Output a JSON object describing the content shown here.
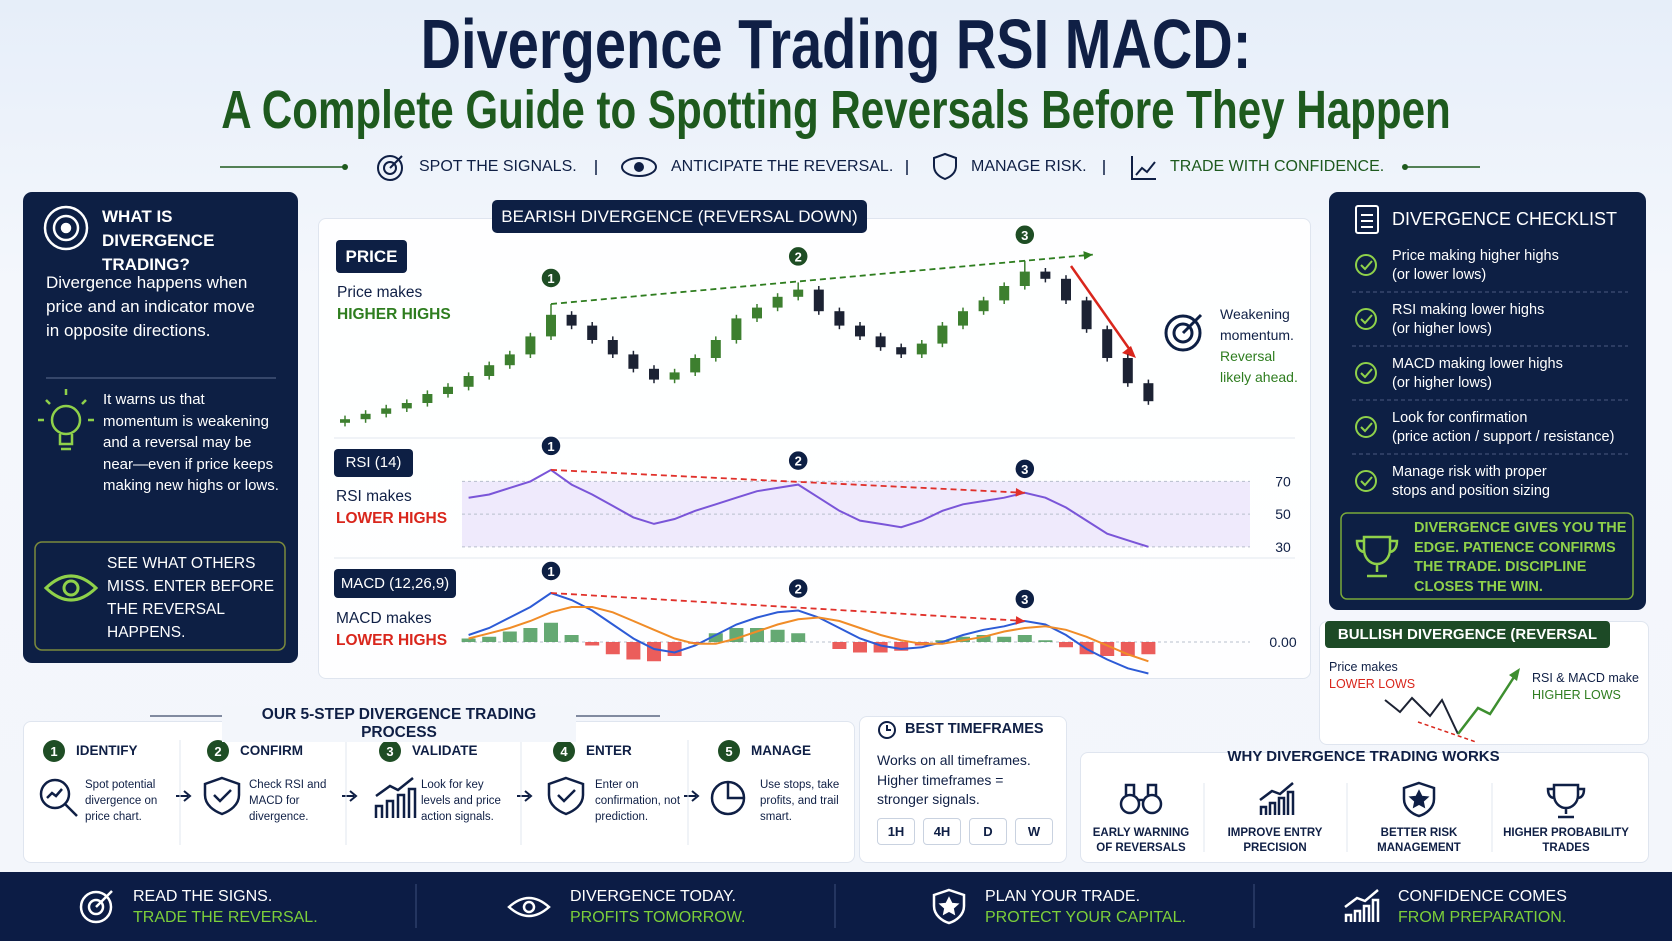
{
  "header": {
    "title": "Divergence Trading RSI MACD:",
    "subtitle": "A Complete Guide to Spotting Reversals Before They Happen",
    "taglines": [
      "SPOT THE SIGNALS.",
      "ANTICIPATE THE REVERSAL.",
      "MANAGE RISK.",
      "TRADE WITH CONFIDENCE."
    ]
  },
  "what_is": {
    "heading": "WHAT IS DIVERGENCE TRADING?",
    "body": "Divergence happens when price and an indicator move in opposite directions.",
    "tip": "It warns us that momentum is weakening and a reversal may be near—even if price keeps making new highs or lows.",
    "callout": "SEE WHAT OTHERS MISS. ENTER BEFORE THE REVERSAL HAPPENS."
  },
  "bearish_panel": {
    "title": "BEARISH DIVERGENCE (REVERSAL DOWN)",
    "peak_labels": [
      "1",
      "2",
      "3"
    ]
  },
  "chart_data": [
    {
      "type": "candlestick",
      "label": "PRICE",
      "note": "Price makes",
      "highlight": "HIGHER HIGHS",
      "side_note": "Weakening momentum.",
      "side_highlight": "Reversal likely ahead.",
      "open": [
        4,
        6,
        9,
        12,
        15,
        20,
        24,
        30,
        36,
        42,
        52,
        64,
        58,
        50,
        42,
        34,
        28,
        32,
        40,
        50,
        62,
        68,
        74,
        78,
        66,
        58,
        52,
        46,
        42,
        48,
        58,
        66,
        72,
        80,
        88,
        84,
        72,
        56,
        40,
        26
      ],
      "high": [
        8,
        11,
        14,
        17,
        22,
        26,
        32,
        38,
        44,
        54,
        70,
        66,
        60,
        52,
        44,
        36,
        34,
        42,
        52,
        64,
        70,
        76,
        82,
        80,
        68,
        60,
        54,
        48,
        50,
        60,
        68,
        74,
        82,
        94,
        90,
        86,
        74,
        58,
        42,
        28
      ],
      "low": [
        2,
        4,
        7,
        10,
        13,
        18,
        22,
        28,
        34,
        40,
        50,
        56,
        48,
        40,
        32,
        26,
        26,
        30,
        38,
        48,
        60,
        66,
        72,
        64,
        56,
        50,
        44,
        40,
        40,
        46,
        56,
        64,
        70,
        78,
        82,
        70,
        54,
        38,
        24,
        14
      ],
      "close": [
        6,
        9,
        12,
        15,
        20,
        24,
        30,
        36,
        42,
        52,
        64,
        58,
        50,
        42,
        34,
        28,
        32,
        40,
        50,
        62,
        68,
        74,
        78,
        66,
        58,
        52,
        46,
        42,
        48,
        58,
        66,
        72,
        80,
        88,
        84,
        72,
        56,
        40,
        26,
        16
      ],
      "up_color": "#3d7f2f",
      "down_color": "#1c2233",
      "ylim": [
        0,
        100
      ]
    },
    {
      "type": "line",
      "label": "RSI (14)",
      "note": "RSI makes",
      "highlight": "LOWER HIGHS",
      "values": [
        null,
        null,
        null,
        null,
        null,
        null,
        60,
        62,
        66,
        70,
        77,
        68,
        62,
        55,
        48,
        44,
        47,
        52,
        56,
        60,
        64,
        66,
        68,
        60,
        52,
        46,
        44,
        42,
        46,
        52,
        56,
        58,
        60,
        63,
        60,
        54,
        46,
        38,
        34,
        30
      ],
      "color": "#7a55d8",
      "ylim": [
        25,
        80
      ],
      "yticks": [
        70,
        50,
        30
      ]
    },
    {
      "type": "macd",
      "label": "MACD (12,26,9)",
      "note": "MACD makes",
      "highlight": "LOWER HIGHS",
      "series": [
        {
          "color": "#2d5bd6",
          "values": [
            null,
            null,
            null,
            null,
            null,
            null,
            0.2,
            0.4,
            0.7,
            1.0,
            1.4,
            1.2,
            0.9,
            0.5,
            0.1,
            -0.2,
            -0.3,
            -0.1,
            0.2,
            0.5,
            0.7,
            0.85,
            0.9,
            0.7,
            0.4,
            0.1,
            -0.1,
            -0.2,
            -0.15,
            0,
            0.2,
            0.35,
            0.45,
            0.6,
            0.5,
            0.2,
            -0.2,
            -0.5,
            -0.75,
            -0.9
          ]
        },
        {
          "color": "#f08c28",
          "values": [
            null,
            null,
            null,
            null,
            null,
            null,
            0.1,
            0.25,
            0.4,
            0.6,
            0.85,
            1.0,
            1.0,
            0.85,
            0.6,
            0.35,
            0.1,
            -0.05,
            -0.05,
            0.1,
            0.3,
            0.5,
            0.65,
            0.7,
            0.6,
            0.4,
            0.2,
            0.05,
            -0.05,
            -0.05,
            0.05,
            0.15,
            0.3,
            0.4,
            0.45,
            0.35,
            0.15,
            -0.1,
            -0.35,
            -0.55
          ]
        }
      ],
      "histogram": [
        null,
        null,
        null,
        null,
        null,
        null,
        0.1,
        0.15,
        0.3,
        0.4,
        0.55,
        0.2,
        -0.1,
        -0.35,
        -0.5,
        -0.55,
        -0.4,
        -0.05,
        0.25,
        0.4,
        0.4,
        0.35,
        0.25,
        0,
        -0.2,
        -0.3,
        -0.3,
        -0.25,
        -0.1,
        0.05,
        0.15,
        0.2,
        0.15,
        0.2,
        0.05,
        -0.15,
        -0.35,
        -0.4,
        -0.4,
        -0.35
      ],
      "up_color": "#4a9a5a",
      "down_color": "#e8413e",
      "ylim": [
        -1.6,
        1.6
      ],
      "yticks": [
        {
          "value": 0,
          "label": "0.00"
        }
      ]
    }
  ],
  "checklist": {
    "title": "DIVERGENCE CHECKLIST",
    "items": [
      {
        "text": "Price making higher highs",
        "note": "(or lower lows)"
      },
      {
        "text": "RSI making lower highs",
        "note": "(or higher lows)"
      },
      {
        "text": "MACD making lower highs",
        "note": "(or higher lows)"
      },
      {
        "text": "Look for confirmation",
        "note": "(price action / support / resistance)"
      },
      {
        "text": "Manage risk with proper",
        "note": "stops and position sizing"
      }
    ],
    "quote": "DIVERGENCE GIVES YOU THE EDGE. PATIENCE CONFIRMS THE TRADE. DISCIPLINE CLOSES THE WIN."
  },
  "bullish_panel": {
    "title": "BULLISH DIVERGENCE (REVERSAL UP)",
    "left_note": "Price makes",
    "left_highlight": "LOWER LOWS",
    "right_note": "RSI & MACD make",
    "right_highlight": "HIGHER LOWS"
  },
  "process": {
    "title": "OUR 5-STEP DIVERGENCE TRADING PROCESS",
    "steps": [
      {
        "number": "1",
        "title": "IDENTIFY",
        "text": "Spot potential divergence on price chart."
      },
      {
        "number": "2",
        "title": "CONFIRM",
        "text": "Check RSI and MACD for divergence."
      },
      {
        "number": "3",
        "title": "VALIDATE",
        "text": "Look for key levels and price action signals."
      },
      {
        "number": "4",
        "title": "ENTER",
        "text": "Enter on confirmation, not prediction."
      },
      {
        "number": "5",
        "title": "MANAGE",
        "text": "Use stops, take profits, and trail smart."
      }
    ]
  },
  "timeframes": {
    "title": "BEST TIMEFRAMES",
    "text": "Works on all timeframes.",
    "note": "Higher timeframes = stronger signals.",
    "chips": [
      "1H",
      "4H",
      "D",
      "W"
    ]
  },
  "why": {
    "title": "WHY DIVERGENCE TRADING WORKS",
    "items": [
      "EARLY WARNING OF REVERSALS",
      "IMPROVE ENTRY PRECISION",
      "BETTER RISK MANAGEMENT",
      "HIGHER PROBABILITY TRADES"
    ]
  },
  "footer": [
    {
      "line1": "READ THE SIGNS.",
      "line2": "TRADE THE REVERSAL."
    },
    {
      "line1": "DIVERGENCE TODAY.",
      "line2": "PROFITS TOMORROW."
    },
    {
      "line1": "PLAN YOUR TRADE.",
      "line2": "PROTECT YOUR CAPITAL."
    },
    {
      "line1": "CONFIDENCE COMES",
      "line2": "FROM PREPARATION."
    }
  ]
}
